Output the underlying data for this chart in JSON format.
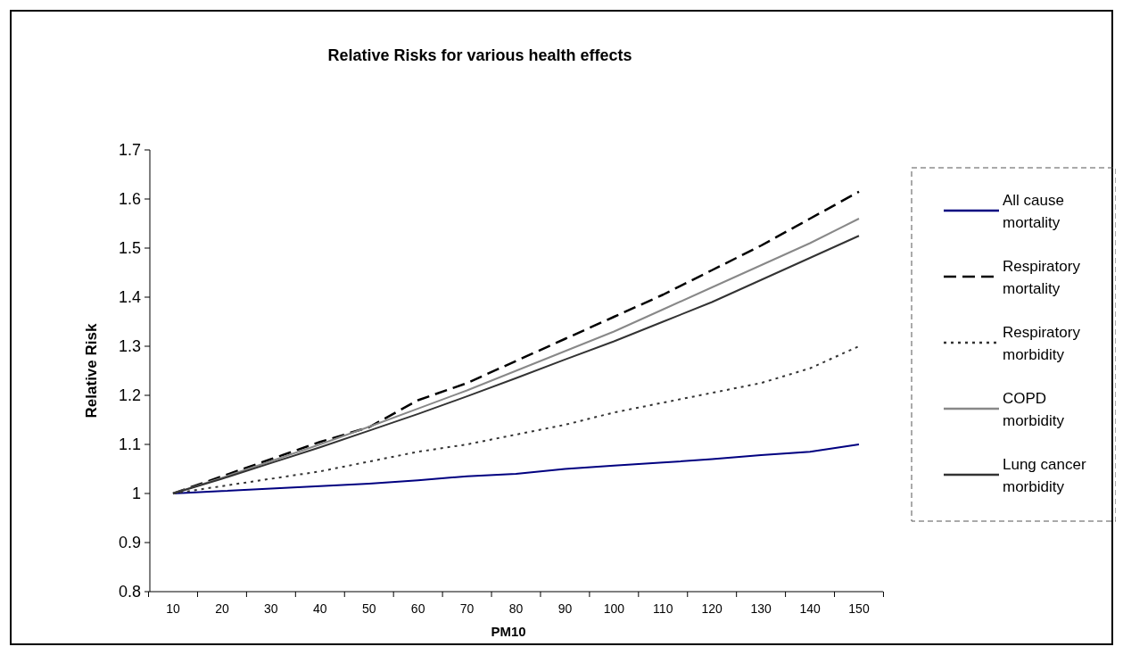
{
  "chart_data": {
    "type": "line",
    "title": "Relative Risks for various health effects",
    "xlabel": "PM10",
    "ylabel": "Relative Risk",
    "categories": [
      "10",
      "20",
      "30",
      "40",
      "50",
      "60",
      "70",
      "80",
      "90",
      "100",
      "110",
      "120",
      "130",
      "140",
      "150"
    ],
    "ylim": [
      0.8,
      1.7
    ],
    "yticks": [
      0.8,
      0.9,
      1,
      1.1,
      1.2,
      1.3,
      1.4,
      1.5,
      1.6,
      1.7
    ],
    "grid": false,
    "legend": "right",
    "marker": "none",
    "series": [
      {
        "name": "All cause mortality",
        "color": "#000080",
        "line_style": "solid",
        "values": [
          1,
          1.005,
          1.01,
          1.015,
          1.02,
          1.027,
          1.035,
          1.04,
          1.05,
          1.057,
          1.063,
          1.07,
          1.078,
          1.085,
          1.1
        ]
      },
      {
        "name": "Respiratory mortality",
        "color": "#000000",
        "line_style": "dashed",
        "values": [
          1,
          1.035,
          1.07,
          1.105,
          1.135,
          1.19,
          1.225,
          1.27,
          1.315,
          1.36,
          1.405,
          1.455,
          1.505,
          1.56,
          1.615
        ]
      },
      {
        "name": "Respiratory morbidity",
        "color": "#333333",
        "line_style": "dotted",
        "values": [
          1,
          1.015,
          1.03,
          1.045,
          1.065,
          1.085,
          1.1,
          1.12,
          1.14,
          1.165,
          1.185,
          1.205,
          1.225,
          1.255,
          1.3
        ]
      },
      {
        "name": "COPD morbidity",
        "color": "#888888",
        "line_style": "solid",
        "values": [
          1,
          1.032,
          1.066,
          1.1,
          1.136,
          1.173,
          1.21,
          1.25,
          1.29,
          1.33,
          1.375,
          1.42,
          1.465,
          1.51,
          1.56
        ]
      },
      {
        "name": "Lung cancer morbidity",
        "color": "#333333",
        "line_style": "solid",
        "values": [
          1,
          1.03,
          1.062,
          1.094,
          1.128,
          1.162,
          1.198,
          1.235,
          1.273,
          1.31,
          1.35,
          1.39,
          1.435,
          1.48,
          1.525
        ]
      }
    ]
  }
}
